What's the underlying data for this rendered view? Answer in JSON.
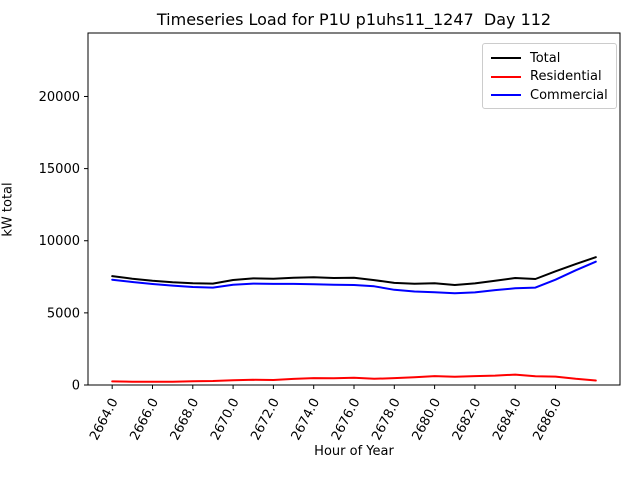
{
  "chart_data": {
    "type": "line",
    "title": "Timeseries Load for P1U p1uhs11_1247  Day 112",
    "xlabel": "Hour of Year",
    "ylabel": "kW total",
    "x": [
      2664,
      2665,
      2666,
      2667,
      2668,
      2669,
      2670,
      2671,
      2672,
      2673,
      2674,
      2675,
      2676,
      2677,
      2678,
      2679,
      2680,
      2681,
      2682,
      2683,
      2684,
      2685,
      2686,
      2687,
      2688
    ],
    "series": [
      {
        "name": "Total",
        "color": "#000000",
        "values": [
          7550,
          7370,
          7220,
          7120,
          7050,
          7030,
          7280,
          7390,
          7360,
          7430,
          7470,
          7420,
          7430,
          7270,
          7080,
          7020,
          7050,
          6930,
          7040,
          7230,
          7420,
          7350,
          7880,
          8380,
          8860
        ]
      },
      {
        "name": "Residential",
        "color": "#ff0000",
        "values": [
          250,
          230,
          220,
          230,
          260,
          280,
          330,
          360,
          350,
          420,
          480,
          470,
          500,
          430,
          480,
          540,
          620,
          570,
          620,
          650,
          720,
          600,
          580,
          430,
          310
        ]
      },
      {
        "name": "Commercial",
        "color": "#0000ff",
        "values": [
          7300,
          7140,
          7000,
          6890,
          6790,
          6750,
          6950,
          7030,
          7010,
          7010,
          6990,
          6950,
          6930,
          6840,
          6600,
          6480,
          6430,
          6360,
          6420,
          6580,
          6700,
          6750,
          7300,
          7950,
          8550
        ]
      }
    ],
    "xlim": [
      2662.8,
      2689.2
    ],
    "ylim": [
      0,
      24400
    ],
    "xticks": [
      2664,
      2666,
      2668,
      2670,
      2672,
      2674,
      2676,
      2678,
      2680,
      2682,
      2684,
      2686
    ],
    "xtick_format_decimals": 1,
    "xtick_rotation_deg": 62,
    "yticks": [
      0,
      5000,
      10000,
      15000,
      20000
    ],
    "grid": false,
    "legend_position": "upper right",
    "legend_labels": [
      "Total",
      "Residential",
      "Commercial"
    ]
  }
}
